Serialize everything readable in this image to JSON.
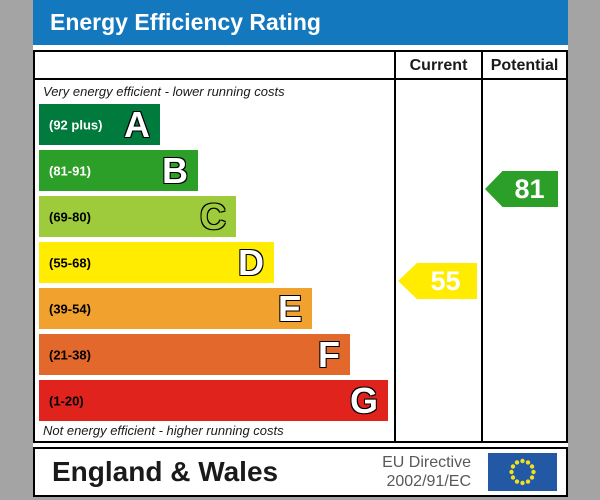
{
  "title": "Energy Efficiency Rating",
  "columns": {
    "current": "Current",
    "potential": "Potential"
  },
  "captions": {
    "top": "Very energy efficient - lower running costs",
    "bottom": "Not energy efficient - higher running costs"
  },
  "bands": [
    {
      "letter": "A",
      "range": "(92 plus)",
      "color": "#007a3d",
      "label_color": "#ffffff",
      "letter_color": "#ffffff"
    },
    {
      "letter": "B",
      "range": "(81-91)",
      "color": "#2c9f29",
      "label_color": "#ffffff",
      "letter_color": "#ffffff"
    },
    {
      "letter": "C",
      "range": "(69-80)",
      "color": "#9dcb3c",
      "label_color": "#000000",
      "letter_color": "#9dcb3c"
    },
    {
      "letter": "D",
      "range": "(55-68)",
      "color": "#ffec00",
      "label_color": "#000000",
      "letter_color": "#ffffff"
    },
    {
      "letter": "E",
      "range": "(39-54)",
      "color": "#f1a12d",
      "label_color": "#000000",
      "letter_color": "#ffffff"
    },
    {
      "letter": "F",
      "range": "(21-38)",
      "color": "#e2682b",
      "label_color": "#000000",
      "letter_color": "#ffffff"
    },
    {
      "letter": "G",
      "range": "(1-20)",
      "color": "#e1231d",
      "label_color": "#000000",
      "letter_color": "#ffffff"
    }
  ],
  "ratings": {
    "current": {
      "value": "55",
      "band": "D",
      "color": "#ffec00"
    },
    "potential": {
      "value": "81",
      "band": "B",
      "color": "#2c9f29"
    }
  },
  "footer": {
    "region": "England & Wales",
    "directive_line1": "EU Directive",
    "directive_line2": "2002/91/EC",
    "flag_icon": "eu-flag-icon"
  },
  "theme": {
    "title_bar_blue": "#1378bd",
    "background_gray": "#a4a4a4",
    "eu_flag_blue": "#2358a5",
    "eu_flag_star_yellow": "#f0e020"
  },
  "chart_data": {
    "type": "bar",
    "title": "Energy Efficiency Rating",
    "categories": [
      "A",
      "B",
      "C",
      "D",
      "E",
      "F",
      "G"
    ],
    "band_ranges": [
      "92 plus",
      "81-91",
      "69-80",
      "55-68",
      "39-54",
      "21-38",
      "1-20"
    ],
    "band_colors": [
      "#007a3d",
      "#2c9f29",
      "#9dcb3c",
      "#ffec00",
      "#f1a12d",
      "#e2682b",
      "#e1231d"
    ],
    "scale": [
      1,
      100
    ],
    "series": [
      {
        "name": "Current",
        "value": 55,
        "band": "D"
      },
      {
        "name": "Potential",
        "value": 81,
        "band": "B"
      }
    ],
    "annotations": [
      "Very energy efficient - lower running costs",
      "Not energy efficient - higher running costs"
    ],
    "legend_position": "none",
    "footer": "England & Wales — EU Directive 2002/91/EC"
  }
}
